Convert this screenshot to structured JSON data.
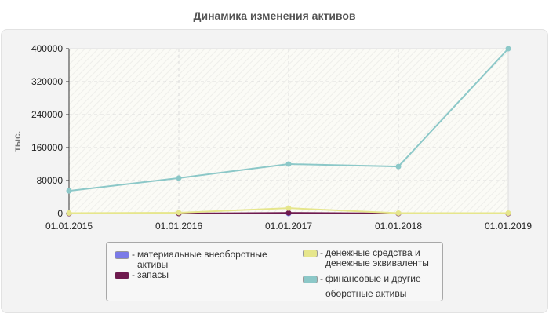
{
  "title": "Динамика изменения активов",
  "y_axis_label": "тыс.",
  "legend": [
    {
      "label": "материальные внеоборотные активы",
      "line1": "материальные внеоборотные",
      "line2": "активы",
      "color": "#7b7be8"
    },
    {
      "label": "запасы",
      "line1": "запасы",
      "line2": "",
      "color": "#6e1a4e"
    },
    {
      "label": "денежные средства и денежные эквиваленты",
      "line1": "денежные средства и",
      "line2": "денежные эквиваленты",
      "color": "#e6e68c"
    },
    {
      "label": "финансовые и другие оборотные активы",
      "line1": "финансовые и другие",
      "line2": "оборотные активы",
      "color": "#8cc8c8"
    }
  ],
  "chart_data": {
    "type": "line",
    "title": "Динамика изменения активов",
    "xlabel": "",
    "ylabel": "тыс.",
    "categories": [
      "01.01.2015",
      "01.01.2016",
      "01.01.2017",
      "01.01.2018",
      "01.01.2019"
    ],
    "y_ticks": [
      "0",
      "80000",
      "160000",
      "240000",
      "320000",
      "400000"
    ],
    "ylim": [
      0,
      400000
    ],
    "grid": true,
    "legend_position": "bottom",
    "series": [
      {
        "name": "материальные внеоборотные активы",
        "color": "#7b7be8",
        "values": [
          0,
          0,
          0,
          0,
          0
        ]
      },
      {
        "name": "запасы",
        "color": "#6e1a4e",
        "values": [
          0,
          0,
          1500,
          0,
          0
        ]
      },
      {
        "name": "денежные средства и денежные эквиваленты",
        "color": "#e6e68c",
        "values": [
          1000,
          2000,
          13000,
          1000,
          1000
        ]
      },
      {
        "name": "финансовые и другие оборотные активы",
        "color": "#8cc8c8",
        "values": [
          55000,
          86000,
          120000,
          114000,
          400000
        ]
      }
    ]
  }
}
